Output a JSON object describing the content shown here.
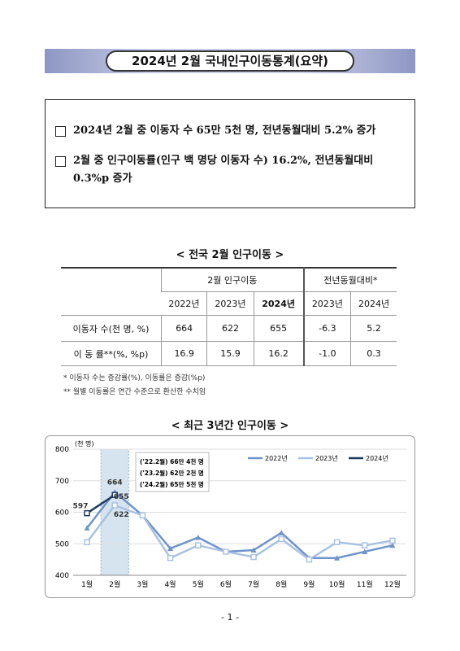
{
  "header": {
    "title": "2024년 2월 국내인구이동통계(요약)"
  },
  "summary": [
    "2024년 2월 중 이동자 수 65만 5천 명, 전년동월대비 5.2% 증가",
    "2월 중 인구이동률(인구 백 명당 이동자 수) 16.2%, 전년동월대비 0.3%p 증가"
  ],
  "table": {
    "title": "< 전국 2월 인구이동 >",
    "group_headers": [
      "2월 인구이동",
      "전년동월대비*"
    ],
    "columns": [
      "2022년",
      "2023년",
      "2024년",
      "2023년",
      "2024년"
    ],
    "rows": [
      [
        "이동자 수(천 명, %)",
        "664",
        "622",
        "655",
        "-6.3",
        "5.2"
      ],
      [
        "이 동 률**(%, %p)",
        "16.9",
        "15.9",
        "16.2",
        "-1.0",
        "0.3"
      ]
    ],
    "notes": [
      "* 이동자 수는 증감률(%), 이동률은 증감(%p)",
      "** 월별 이동률은 연간 수준으로 환산한 수치임"
    ]
  },
  "chart_data": {
    "type": "line",
    "title": "< 최근 3년간 인구이동 >",
    "y_label": "(천 명)",
    "categories": [
      "1월",
      "2월",
      "3월",
      "4월",
      "5월",
      "6월",
      "7월",
      "8월",
      "9월",
      "10월",
      "11월",
      "12월"
    ],
    "series": [
      {
        "name": "2022년",
        "color": "#6f93cc",
        "marker": "triangle",
        "values": [
          550,
          664,
          590,
          485,
          520,
          475,
          480,
          535,
          455,
          455,
          475,
          495
        ]
      },
      {
        "name": "2023년",
        "color": "#a9c2e2",
        "marker": "square",
        "values": [
          505,
          622,
          590,
          455,
          495,
          475,
          458,
          515,
          450,
          505,
          495,
          510
        ]
      },
      {
        "name": "2024년",
        "color": "#1f3a5f",
        "marker": "square",
        "values": [
          597,
          655,
          null,
          null,
          null,
          null,
          null,
          null,
          null,
          null,
          null,
          null
        ]
      }
    ],
    "ylim": [
      400,
      800
    ],
    "yticks": [
      400,
      500,
      600,
      700,
      800
    ],
    "annotation": [
      "('22.2월) 66만 4천 명",
      "('23.2월) 62만 2천 명",
      "('24.2월) 65만 5천 명"
    ],
    "legend": "top-right"
  },
  "footer": {
    "page": "- 1 -"
  }
}
